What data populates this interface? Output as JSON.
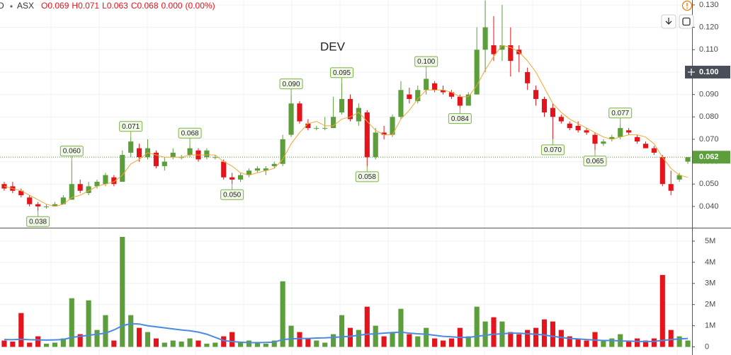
{
  "chart_data": {
    "type": "candlestick",
    "title": "DEV",
    "header": {
      "symbol": "D",
      "exchange": "ASX",
      "ohlc": [
        {
          "name": "O",
          "value": 0.069
        },
        {
          "name": "H",
          "value": 0.071
        },
        {
          "name": "L",
          "value": 0.063
        },
        {
          "name": "C",
          "value": 0.068
        }
      ],
      "change": {
        "value": 0,
        "label": "0.000"
      },
      "change_percent": {
        "value": 0,
        "label": "(0.00%)"
      }
    },
    "up_color": "#5d9e3c",
    "down_color": "#e3141c",
    "ma_color": "#f0a830",
    "volume_ma_color": "#4a8ae0",
    "ylim": [
      0.0305,
      0.1322
    ],
    "yticks": [
      {
        "value": 0.04,
        "label": "0.040"
      },
      {
        "value": 0.05,
        "label": "0.050"
      },
      {
        "value": 0.06,
        "label": "0.060"
      },
      {
        "value": 0.07,
        "label": "0.070"
      },
      {
        "value": 0.08,
        "label": "0.080"
      },
      {
        "value": 0.09,
        "label": "0.090"
      },
      {
        "value": 0.1,
        "label": "0.100"
      },
      {
        "value": 0.11,
        "label": "0.110"
      },
      {
        "value": 0.12,
        "label": "0.120"
      },
      {
        "value": 0.13,
        "label": "0.130"
      }
    ],
    "volume_ylim": [
      -250000,
      5600000
    ],
    "volume_yticks": [
      0,
      {
        "value": 1000000,
        "label": "1M"
      },
      {
        "value": 2000000,
        "label": "2M"
      },
      {
        "value": 3000000,
        "label": "3M"
      },
      {
        "value": 4000000,
        "label": "4M"
      },
      {
        "value": 5000000,
        "label": "5M"
      }
    ],
    "last_price": {
      "value": 0.062,
      "label": "0.062"
    },
    "crosshair_price": {
      "value": 0.1,
      "label": "0.100"
    },
    "candles": [
      {
        "open": 0.05,
        "high": 0.051,
        "low": 0.047,
        "close": 0.048,
        "volume": 300000
      },
      {
        "open": 0.049,
        "high": 0.051,
        "low": 0.046,
        "close": 0.047,
        "volume": 250000
      },
      {
        "open": 0.047,
        "high": 0.048,
        "low": 0.044,
        "close": 0.045,
        "volume": 1600000
      },
      {
        "open": 0.044,
        "high": 0.045,
        "low": 0.04,
        "close": 0.041,
        "volume": 200000
      },
      {
        "open": 0.041,
        "high": 0.042,
        "low": 0.038,
        "close": 0.04,
        "volume": 500000,
        "label": "0.038"
      },
      {
        "open": 0.04,
        "high": 0.041,
        "low": 0.039,
        "close": 0.04,
        "volume": 150000
      },
      {
        "open": 0.04,
        "high": 0.042,
        "low": 0.04,
        "close": 0.041,
        "volume": 200000
      },
      {
        "open": 0.041,
        "high": 0.045,
        "low": 0.041,
        "close": 0.044,
        "volume": 400000
      },
      {
        "open": 0.043,
        "high": 0.06,
        "low": 0.043,
        "close": 0.05,
        "volume": 2300000,
        "label": "0.060"
      },
      {
        "open": 0.05,
        "high": 0.052,
        "low": 0.046,
        "close": 0.047,
        "volume": 600000
      },
      {
        "open": 0.046,
        "high": 0.051,
        "low": 0.045,
        "close": 0.049,
        "volume": 2200000
      },
      {
        "open": 0.049,
        "high": 0.052,
        "low": 0.048,
        "close": 0.051,
        "volume": 800000
      },
      {
        "open": 0.05,
        "high": 0.055,
        "low": 0.049,
        "close": 0.054,
        "volume": 1500000
      },
      {
        "open": 0.053,
        "high": 0.054,
        "low": 0.049,
        "close": 0.05,
        "volume": 300000
      },
      {
        "open": 0.051,
        "high": 0.065,
        "low": 0.051,
        "close": 0.063,
        "volume": 5200000
      },
      {
        "open": 0.064,
        "high": 0.071,
        "low": 0.062,
        "close": 0.069,
        "volume": 1500000,
        "label": "0.071"
      },
      {
        "open": 0.066,
        "high": 0.068,
        "low": 0.06,
        "close": 0.062,
        "volume": 900000
      },
      {
        "open": 0.062,
        "high": 0.07,
        "low": 0.061,
        "close": 0.066,
        "volume": 700000
      },
      {
        "open": 0.064,
        "high": 0.065,
        "low": 0.057,
        "close": 0.058,
        "volume": 400000
      },
      {
        "open": 0.058,
        "high": 0.062,
        "low": 0.056,
        "close": 0.06,
        "volume": 200000
      },
      {
        "open": 0.062,
        "high": 0.066,
        "low": 0.061,
        "close": 0.064,
        "volume": 300000
      },
      {
        "open": 0.062,
        "high": 0.063,
        "low": 0.061,
        "close": 0.062,
        "volume": 250000
      },
      {
        "open": 0.063,
        "high": 0.068,
        "low": 0.062,
        "close": 0.066,
        "volume": 400000,
        "label": "0.068"
      },
      {
        "open": 0.065,
        "high": 0.066,
        "low": 0.06,
        "close": 0.061,
        "volume": 300000
      },
      {
        "open": 0.062,
        "high": 0.066,
        "low": 0.061,
        "close": 0.065,
        "volume": 150000
      },
      {
        "open": 0.062,
        "high": 0.063,
        "low": 0.061,
        "close": 0.062,
        "volume": 200000
      },
      {
        "open": 0.06,
        "high": 0.061,
        "low": 0.052,
        "close": 0.053,
        "volume": 500000
      },
      {
        "open": 0.053,
        "high": 0.055,
        "low": 0.05,
        "close": 0.052,
        "volume": 700000,
        "label": "0.050"
      },
      {
        "open": 0.052,
        "high": 0.055,
        "low": 0.051,
        "close": 0.054,
        "volume": 250000
      },
      {
        "open": 0.054,
        "high": 0.057,
        "low": 0.053,
        "close": 0.056,
        "volume": 300000
      },
      {
        "open": 0.056,
        "high": 0.058,
        "low": 0.055,
        "close": 0.057,
        "volume": 200000
      },
      {
        "open": 0.056,
        "high": 0.058,
        "low": 0.054,
        "close": 0.057,
        "volume": 150000
      },
      {
        "open": 0.058,
        "high": 0.06,
        "low": 0.057,
        "close": 0.059,
        "volume": 300000
      },
      {
        "open": 0.059,
        "high": 0.072,
        "low": 0.058,
        "close": 0.07,
        "volume": 3100000
      },
      {
        "open": 0.072,
        "high": 0.09,
        "low": 0.071,
        "close": 0.086,
        "volume": 1000000,
        "label": "0.090"
      },
      {
        "open": 0.086,
        "high": 0.087,
        "low": 0.077,
        "close": 0.078,
        "volume": 700000
      },
      {
        "open": 0.077,
        "high": 0.079,
        "low": 0.074,
        "close": 0.075,
        "volume": 400000
      },
      {
        "open": 0.075,
        "high": 0.076,
        "low": 0.074,
        "close": 0.075,
        "volume": 300000
      },
      {
        "open": 0.075,
        "high": 0.08,
        "low": 0.074,
        "close": 0.075,
        "volume": 200000
      },
      {
        "open": 0.075,
        "high": 0.089,
        "low": 0.075,
        "close": 0.08,
        "volume": 600000
      },
      {
        "open": 0.082,
        "high": 0.095,
        "low": 0.081,
        "close": 0.088,
        "volume": 1500000,
        "label": "0.095"
      },
      {
        "open": 0.088,
        "high": 0.09,
        "low": 0.078,
        "close": 0.079,
        "volume": 900000
      },
      {
        "open": 0.078,
        "high": 0.086,
        "low": 0.076,
        "close": 0.084,
        "volume": 800000
      },
      {
        "open": 0.082,
        "high": 0.083,
        "low": 0.058,
        "close": 0.062,
        "volume": 1900000,
        "label": "0.058"
      },
      {
        "open": 0.062,
        "high": 0.075,
        "low": 0.061,
        "close": 0.073,
        "volume": 1000000
      },
      {
        "open": 0.073,
        "high": 0.076,
        "low": 0.07,
        "close": 0.072,
        "volume": 500000
      },
      {
        "open": 0.072,
        "high": 0.081,
        "low": 0.071,
        "close": 0.08,
        "volume": 700000
      },
      {
        "open": 0.08,
        "high": 0.096,
        "low": 0.079,
        "close": 0.092,
        "volume": 1800000
      },
      {
        "open": 0.09,
        "high": 0.093,
        "low": 0.086,
        "close": 0.088,
        "volume": 600000
      },
      {
        "open": 0.087,
        "high": 0.094,
        "low": 0.086,
        "close": 0.092,
        "volume": 500000
      },
      {
        "open": 0.092,
        "high": 0.1,
        "low": 0.09,
        "close": 0.097,
        "volume": 900000,
        "label": "0.100"
      },
      {
        "open": 0.095,
        "high": 0.096,
        "low": 0.091,
        "close": 0.092,
        "volume": 400000
      },
      {
        "open": 0.092,
        "high": 0.094,
        "low": 0.09,
        "close": 0.091,
        "volume": 300000
      },
      {
        "open": 0.091,
        "high": 0.092,
        "low": 0.088,
        "close": 0.089,
        "volume": 400000
      },
      {
        "open": 0.089,
        "high": 0.09,
        "low": 0.084,
        "close": 0.085,
        "volume": 900000,
        "label": "0.084"
      },
      {
        "open": 0.085,
        "high": 0.091,
        "low": 0.085,
        "close": 0.09,
        "volume": 500000
      },
      {
        "open": 0.09,
        "high": 0.12,
        "low": 0.09,
        "close": 0.11,
        "volume": 1900000
      },
      {
        "open": 0.11,
        "high": 0.132,
        "low": 0.1,
        "close": 0.12,
        "volume": 1200000
      },
      {
        "open": 0.112,
        "high": 0.125,
        "low": 0.105,
        "close": 0.108,
        "volume": 1400000
      },
      {
        "open": 0.11,
        "high": 0.13,
        "low": 0.105,
        "close": 0.112,
        "volume": 1200000
      },
      {
        "open": 0.112,
        "high": 0.12,
        "low": 0.098,
        "close": 0.105,
        "volume": 700000
      },
      {
        "open": 0.11,
        "high": 0.112,
        "low": 0.1,
        "close": 0.108,
        "volume": 600000
      },
      {
        "open": 0.1,
        "high": 0.102,
        "low": 0.092,
        "close": 0.095,
        "volume": 800000
      },
      {
        "open": 0.092,
        "high": 0.094,
        "low": 0.085,
        "close": 0.088,
        "volume": 900000
      },
      {
        "open": 0.088,
        "high": 0.089,
        "low": 0.08,
        "close": 0.082,
        "volume": 1300000
      },
      {
        "open": 0.084,
        "high": 0.086,
        "low": 0.07,
        "close": 0.08,
        "volume": 1200000,
        "label": "0.070"
      },
      {
        "open": 0.08,
        "high": 0.081,
        "low": 0.077,
        "close": 0.078,
        "volume": 800000
      },
      {
        "open": 0.077,
        "high": 0.078,
        "low": 0.074,
        "close": 0.075,
        "volume": 500000
      },
      {
        "open": 0.076,
        "high": 0.078,
        "low": 0.073,
        "close": 0.074,
        "volume": 400000
      },
      {
        "open": 0.074,
        "high": 0.075,
        "low": 0.072,
        "close": 0.073,
        "volume": 300000
      },
      {
        "open": 0.072,
        "high": 0.073,
        "low": 0.065,
        "close": 0.068,
        "volume": 700000,
        "label": "0.065"
      },
      {
        "open": 0.068,
        "high": 0.07,
        "low": 0.067,
        "close": 0.069,
        "volume": 300000
      },
      {
        "open": 0.07,
        "high": 0.072,
        "low": 0.069,
        "close": 0.071,
        "volume": 400000
      },
      {
        "open": 0.071,
        "high": 0.077,
        "low": 0.07,
        "close": 0.075,
        "volume": 600000,
        "label": "0.077"
      },
      {
        "open": 0.074,
        "high": 0.075,
        "low": 0.072,
        "close": 0.073,
        "volume": 300000
      },
      {
        "open": 0.071,
        "high": 0.072,
        "low": 0.068,
        "close": 0.069,
        "volume": 400000
      },
      {
        "open": 0.068,
        "high": 0.069,
        "low": 0.066,
        "close": 0.066,
        "volume": 300000
      },
      {
        "open": 0.066,
        "high": 0.067,
        "low": 0.063,
        "close": 0.064,
        "volume": 400000
      },
      {
        "open": 0.062,
        "high": 0.063,
        "low": 0.049,
        "close": 0.05,
        "volume": 3400000
      },
      {
        "open": 0.05,
        "high": 0.056,
        "low": 0.045,
        "close": 0.047,
        "volume": 800000
      },
      {
        "open": 0.052,
        "high": 0.055,
        "low": 0.051,
        "close": 0.054,
        "volume": 500000
      },
      {
        "open": 0.06,
        "high": 0.062,
        "low": 0.059,
        "close": 0.062,
        "volume": 300000
      }
    ],
    "ma": [
      0.049,
      0.048,
      0.047,
      0.045,
      0.043,
      0.041,
      0.04,
      0.041,
      0.044,
      0.045,
      0.047,
      0.049,
      0.05,
      0.051,
      0.054,
      0.059,
      0.061,
      0.064,
      0.063,
      0.062,
      0.062,
      0.062,
      0.063,
      0.063,
      0.063,
      0.063,
      0.06,
      0.058,
      0.055,
      0.054,
      0.055,
      0.056,
      0.057,
      0.061,
      0.068,
      0.073,
      0.077,
      0.078,
      0.076,
      0.076,
      0.079,
      0.08,
      0.082,
      0.078,
      0.074,
      0.072,
      0.072,
      0.079,
      0.083,
      0.088,
      0.092,
      0.092,
      0.092,
      0.091,
      0.089,
      0.089,
      0.094,
      0.101,
      0.107,
      0.112,
      0.111,
      0.109,
      0.105,
      0.1,
      0.093,
      0.086,
      0.082,
      0.079,
      0.077,
      0.075,
      0.073,
      0.071,
      0.07,
      0.071,
      0.072,
      0.072,
      0.071,
      0.068,
      0.062,
      0.057,
      0.054,
      0.053
    ],
    "volume_ma": [
      350000,
      340000,
      360000,
      340000,
      330000,
      320000,
      330000,
      350000,
      450000,
      500000,
      550000,
      600000,
      650000,
      800000,
      1000000,
      1100000,
      1080000,
      1000000,
      950000,
      900000,
      850000,
      800000,
      760000,
      700000,
      600000,
      450000,
      300000,
      250000,
      220000,
      200000,
      200000,
      210000,
      220000,
      350000,
      380000,
      400000,
      400000,
      420000,
      430000,
      450000,
      480000,
      500000,
      550000,
      600000,
      620000,
      650000,
      680000,
      700000,
      650000,
      620000,
      600000,
      550000,
      500000,
      480000,
      450000,
      450000,
      500000,
      550000,
      600000,
      620000,
      650000,
      650000,
      620000,
      600000,
      560000,
      500000,
      450000,
      400000,
      380000,
      350000,
      320000,
      300000,
      300000,
      280000,
      270000,
      260000,
      250000,
      260000,
      300000,
      350000,
      380000,
      400000
    ]
  }
}
